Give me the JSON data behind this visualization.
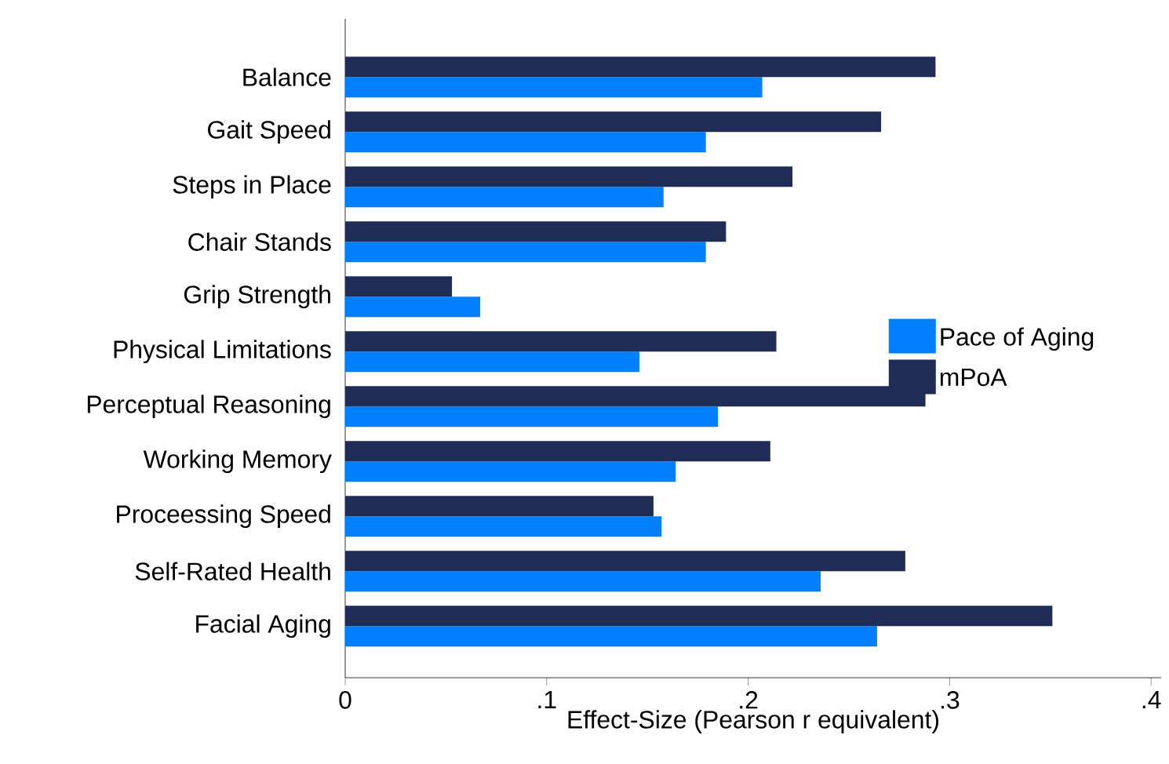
{
  "chart_data": {
    "type": "bar",
    "orientation": "horizontal",
    "xlabel": "Effect-Size (Pearson r equivalent)",
    "categories": [
      "Balance",
      "Gait Speed",
      "Steps in Place",
      "Chair Stands",
      "Grip Strength",
      "Physical Limitations",
      "Perceptual Reasoning",
      "Working Memory",
      "Proceessing Speed",
      "Self-Rated Health",
      "Facial Aging"
    ],
    "series": [
      {
        "name": "Pace of Aging",
        "color": "#0080ff",
        "values": [
          0.207,
          0.179,
          0.158,
          0.179,
          0.067,
          0.146,
          0.185,
          0.164,
          0.157,
          0.236,
          0.264
        ]
      },
      {
        "name": "mPoA",
        "color": "#1f2d56",
        "values": [
          0.293,
          0.266,
          0.222,
          0.189,
          0.053,
          0.214,
          0.288,
          0.211,
          0.153,
          0.278,
          0.351
        ]
      }
    ],
    "xlim": [
      0,
      0.405
    ],
    "xticks": [
      0,
      {
        "value": 0.1,
        "label": ".1"
      },
      {
        "value": 0.2,
        "label": ".2"
      },
      {
        "value": 0.3,
        "label": ".3"
      },
      {
        "value": 0.4,
        "label": ".4"
      }
    ],
    "grid": false,
    "legend": "right"
  }
}
